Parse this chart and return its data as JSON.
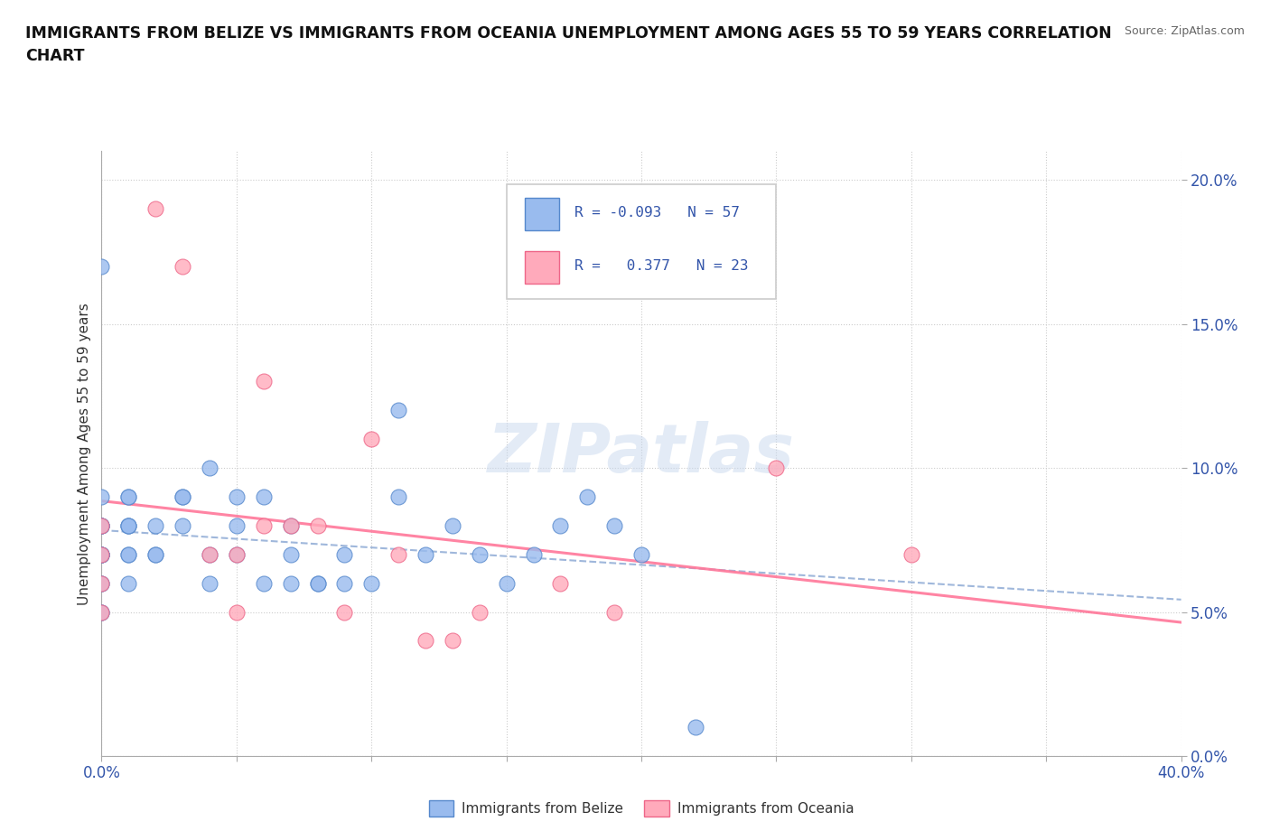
{
  "title": "IMMIGRANTS FROM BELIZE VS IMMIGRANTS FROM OCEANIA UNEMPLOYMENT AMONG AGES 55 TO 59 YEARS CORRELATION\nCHART",
  "source_text": "Source: ZipAtlas.com",
  "ylabel": "Unemployment Among Ages 55 to 59 years",
  "xlim": [
    0.0,
    0.4
  ],
  "ylim": [
    0.0,
    0.21
  ],
  "xticks": [
    0.0,
    0.05,
    0.1,
    0.15,
    0.2,
    0.25,
    0.3,
    0.35,
    0.4
  ],
  "yticks": [
    0.0,
    0.05,
    0.1,
    0.15,
    0.2
  ],
  "R_belize": -0.093,
  "N_belize": 57,
  "R_oceania": 0.377,
  "N_oceania": 23,
  "belize_color": "#99bbee",
  "oceania_color": "#ffaabb",
  "belize_edge_color": "#5588cc",
  "oceania_edge_color": "#ee6688",
  "belize_trend_color": "#7799cc",
  "oceania_trend_color": "#ff7799",
  "watermark": "ZIPatlas",
  "background_color": "#ffffff",
  "label_color": "#3355aa",
  "belize_x": [
    0.0,
    0.0,
    0.0,
    0.0,
    0.0,
    0.0,
    0.0,
    0.0,
    0.0,
    0.0,
    0.0,
    0.0,
    0.0,
    0.0,
    0.0,
    0.01,
    0.01,
    0.01,
    0.01,
    0.01,
    0.01,
    0.01,
    0.01,
    0.02,
    0.02,
    0.02,
    0.03,
    0.03,
    0.03,
    0.04,
    0.04,
    0.04,
    0.05,
    0.05,
    0.05,
    0.06,
    0.06,
    0.07,
    0.07,
    0.07,
    0.08,
    0.08,
    0.09,
    0.09,
    0.1,
    0.11,
    0.11,
    0.12,
    0.13,
    0.14,
    0.15,
    0.16,
    0.17,
    0.18,
    0.19,
    0.2,
    0.22
  ],
  "belize_y": [
    0.05,
    0.05,
    0.06,
    0.06,
    0.07,
    0.07,
    0.07,
    0.07,
    0.07,
    0.08,
    0.08,
    0.08,
    0.08,
    0.09,
    0.17,
    0.06,
    0.07,
    0.07,
    0.08,
    0.08,
    0.08,
    0.09,
    0.09,
    0.07,
    0.07,
    0.08,
    0.08,
    0.09,
    0.09,
    0.06,
    0.07,
    0.1,
    0.07,
    0.08,
    0.09,
    0.06,
    0.09,
    0.06,
    0.07,
    0.08,
    0.06,
    0.06,
    0.06,
    0.07,
    0.06,
    0.09,
    0.12,
    0.07,
    0.08,
    0.07,
    0.06,
    0.07,
    0.08,
    0.09,
    0.08,
    0.07,
    0.01
  ],
  "oceania_x": [
    0.0,
    0.0,
    0.0,
    0.0,
    0.02,
    0.03,
    0.04,
    0.05,
    0.05,
    0.06,
    0.06,
    0.07,
    0.08,
    0.09,
    0.1,
    0.11,
    0.12,
    0.13,
    0.14,
    0.17,
    0.19,
    0.25,
    0.3
  ],
  "oceania_y": [
    0.05,
    0.06,
    0.07,
    0.08,
    0.19,
    0.17,
    0.07,
    0.05,
    0.07,
    0.08,
    0.13,
    0.08,
    0.08,
    0.05,
    0.11,
    0.07,
    0.04,
    0.04,
    0.05,
    0.06,
    0.05,
    0.1,
    0.07
  ]
}
